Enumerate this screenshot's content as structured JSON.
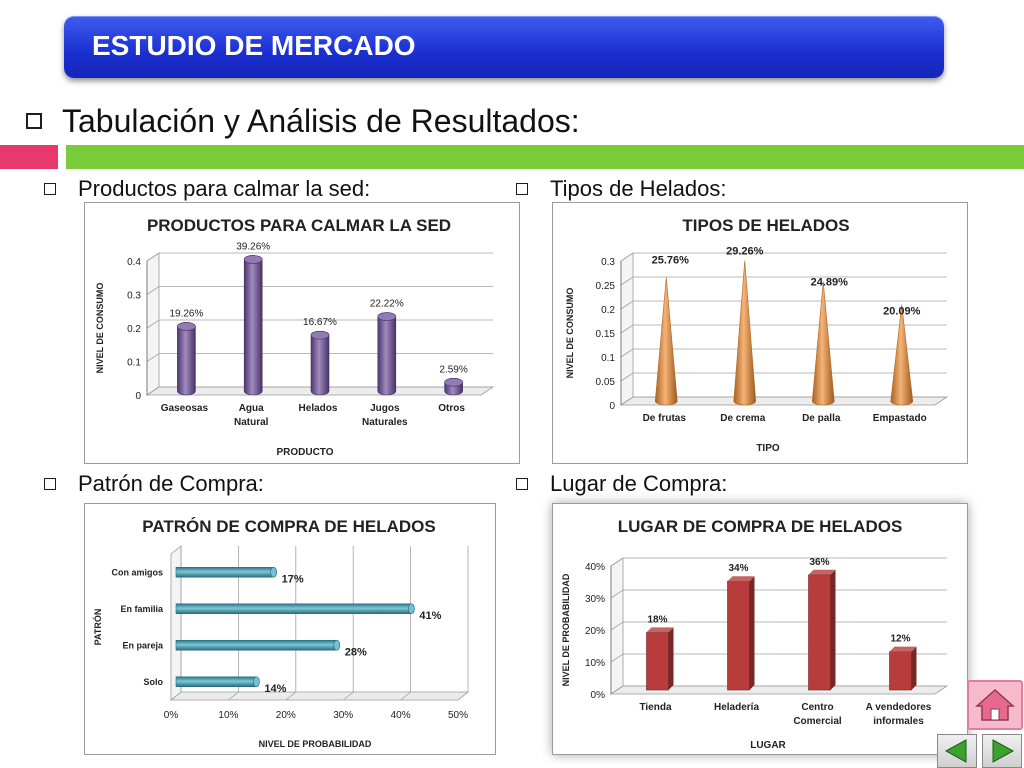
{
  "header": {
    "banner_title": "ESTUDIO DE MERCADO"
  },
  "heading": "Tabulación y Análisis de Resultados:",
  "sections": {
    "products": "Productos para calmar la sed:",
    "types": "Tipos de Helados:",
    "pattern": "Patrón de Compra:",
    "place": "Lugar de Compra:"
  },
  "colors": {
    "banner": "#1b2fd0",
    "stripe_pink": "#e8396e",
    "stripe_green": "#7bcc3a",
    "purple": "#6e4d9c",
    "orange": "#f08a2e",
    "teal": "#3aa7c2",
    "red": "#b83c3c"
  },
  "icons": {
    "home": "home-icon",
    "prev": "arrow-left-icon",
    "next": "arrow-right-icon"
  },
  "chart_data": [
    {
      "type": "bar",
      "title": "PRODUCTOS PARA CALMAR LA SED",
      "xlabel": "PRODUCTO",
      "ylabel": "NIVEL DE CONSUMO",
      "categories": [
        "Gaseosas",
        "Agua Natural",
        "Helados",
        "Jugos Naturales",
        "Otros"
      ],
      "values": [
        0.1926,
        0.3926,
        0.1667,
        0.2222,
        0.0259
      ],
      "data_labels": [
        "19.26%",
        "39.26%",
        "16.67%",
        "22.22%",
        "2.59%"
      ],
      "ylim": [
        0,
        0.4
      ],
      "yticks": [
        "0",
        "0.1",
        "0.2",
        "0.3",
        "0.4"
      ],
      "grid": true,
      "color": "#6e4d9c"
    },
    {
      "type": "bar",
      "title": "TIPOS DE HELADOS",
      "xlabel": "TIPO",
      "ylabel": "NIVEL DE CONSUMO",
      "categories": [
        "De frutas",
        "De crema",
        "De palla",
        "Empastado"
      ],
      "values": [
        0.2576,
        0.2926,
        0.2489,
        0.2009
      ],
      "data_labels": [
        "25.76%",
        "29.26%",
        "24.89%",
        "20.09%"
      ],
      "ylim": [
        0,
        0.3
      ],
      "yticks": [
        "0",
        "0.05",
        "0.1",
        "0.15",
        "0.2",
        "0.25",
        "0.3"
      ],
      "grid": true,
      "color": "#f08a2e"
    },
    {
      "type": "bar",
      "orientation": "horizontal",
      "title": "PATRÓN DE COMPRA DE HELADOS",
      "xlabel": "NIVEL DE PROBABILIDAD",
      "ylabel": "PATRÓN",
      "categories": [
        "Con amigos",
        "En familia",
        "En pareja",
        "Solo"
      ],
      "values": [
        0.17,
        0.41,
        0.28,
        0.14
      ],
      "data_labels": [
        "17%",
        "41%",
        "28%",
        "14%"
      ],
      "xlim": [
        0,
        0.5
      ],
      "xticks": [
        "0%",
        "10%",
        "20%",
        "30%",
        "40%",
        "50%"
      ],
      "grid": true,
      "color": "#3aa7c2"
    },
    {
      "type": "bar",
      "title": "LUGAR DE COMPRA DE HELADOS",
      "xlabel": "LUGAR",
      "ylabel": "NIVEL DE PROBABILIDAD",
      "categories": [
        "Tienda",
        "Heladería",
        "Centro Comercial",
        "A vendedores informales"
      ],
      "values": [
        0.18,
        0.34,
        0.36,
        0.12
      ],
      "data_labels": [
        "18%",
        "34%",
        "36%",
        "12%"
      ],
      "ylim": [
        0,
        0.4
      ],
      "yticks": [
        "0%",
        "10%",
        "20%",
        "30%",
        "40%"
      ],
      "grid": true,
      "color": "#b83c3c"
    }
  ]
}
